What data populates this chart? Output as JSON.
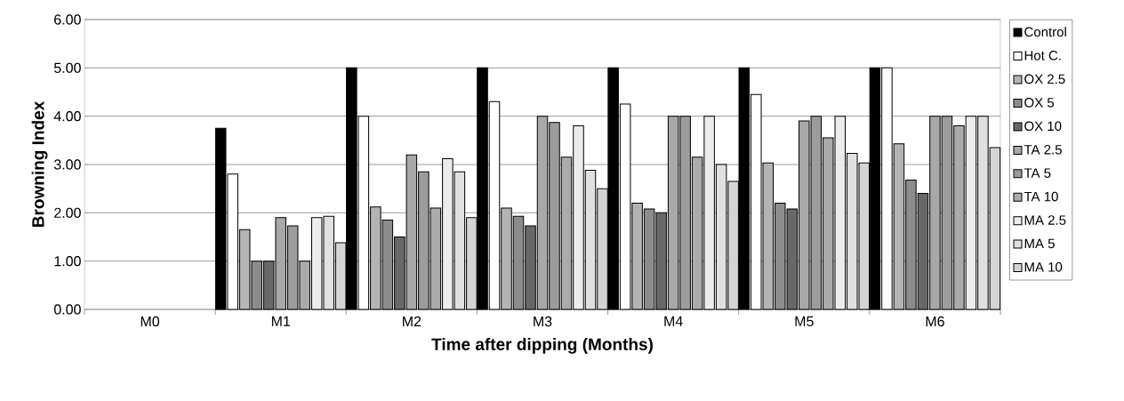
{
  "chart_data": {
    "type": "bar",
    "xlabel": "Time after dipping (Months)",
    "ylabel": "Browning Index",
    "categories": [
      "M0",
      "M1",
      "M2",
      "M3",
      "M4",
      "M5",
      "M6"
    ],
    "series": [
      {
        "name": "Control",
        "color": "#000000",
        "values": [
          null,
          3.75,
          5.0,
          5.0,
          5.0,
          5.0,
          5.0
        ]
      },
      {
        "name": "Hot C.",
        "color": "#ffffff",
        "values": [
          null,
          2.8,
          4.0,
          4.3,
          4.25,
          4.45,
          5.0
        ]
      },
      {
        "name": "OX 2.5",
        "color": "#b4b4b4",
        "values": [
          null,
          1.65,
          2.12,
          2.1,
          2.2,
          3.03,
          3.43
        ]
      },
      {
        "name": "OX 5",
        "color": "#8c8c8c",
        "values": [
          null,
          1.0,
          1.85,
          1.93,
          2.08,
          2.2,
          2.68
        ]
      },
      {
        "name": "OX 10",
        "color": "#686868",
        "values": [
          null,
          1.0,
          1.5,
          1.73,
          2.0,
          2.08,
          2.4
        ]
      },
      {
        "name": "TA 2.5",
        "color": "#a8a8a8",
        "values": [
          null,
          1.9,
          3.2,
          4.0,
          4.0,
          3.9,
          4.0
        ]
      },
      {
        "name": "TA 5",
        "color": "#9c9c9c",
        "values": [
          null,
          1.73,
          2.85,
          3.87,
          4.0,
          4.0,
          4.0
        ]
      },
      {
        "name": "TA 10",
        "color": "#ababab",
        "values": [
          null,
          1.0,
          2.1,
          3.15,
          3.15,
          3.55,
          3.8
        ]
      },
      {
        "name": "MA 2.5",
        "color": "#ececec",
        "values": [
          null,
          1.9,
          3.12,
          3.8,
          4.0,
          4.0,
          4.0
        ]
      },
      {
        "name": "MA 5",
        "color": "#e0e0e0",
        "values": [
          null,
          1.93,
          2.85,
          2.88,
          3.0,
          3.23,
          4.0
        ]
      },
      {
        "name": "MA 10",
        "color": "#d4d4d4",
        "values": [
          null,
          1.38,
          1.9,
          2.5,
          2.65,
          3.03,
          3.35
        ]
      }
    ],
    "ylim": [
      0,
      6
    ],
    "yticks": [
      {
        "value": 0,
        "label": "0.00"
      },
      {
        "value": 1,
        "label": "1.00"
      },
      {
        "value": 2,
        "label": "2.00"
      },
      {
        "value": 3,
        "label": "3.00"
      },
      {
        "value": 4,
        "label": "4.00"
      },
      {
        "value": 5,
        "label": "5.00"
      },
      {
        "value": 6,
        "label": "6.00"
      }
    ],
    "grid": "y",
    "legend": "right"
  }
}
